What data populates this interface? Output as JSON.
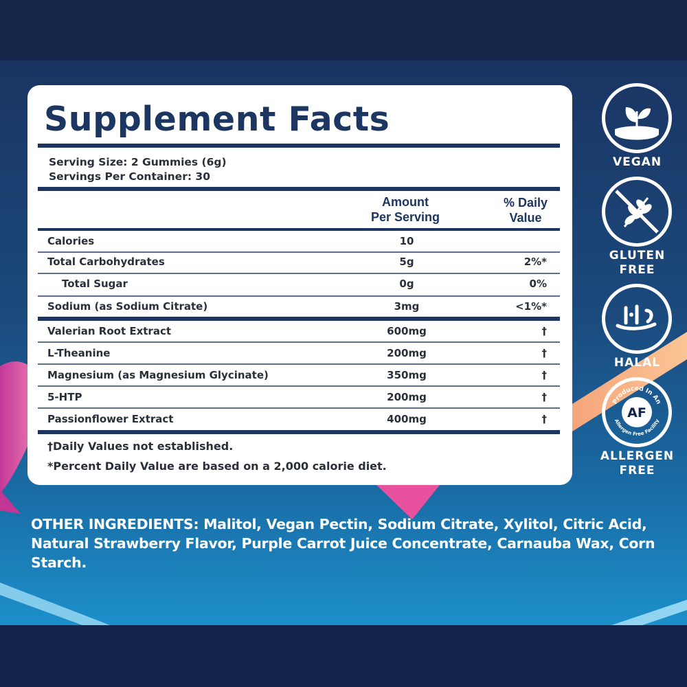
{
  "panel": {
    "title": "Supplement Facts",
    "serving_size": "Serving Size: 2 Gummies (6g)",
    "servings_per_container": "Servings Per Container: 30",
    "columns": {
      "amount_line1": "Amount",
      "amount_line2": "Per Serving",
      "dv_line1": "% Daily",
      "dv_line2": "Value"
    },
    "rows": [
      {
        "label": "Calories",
        "amount": "10",
        "dv": ""
      },
      {
        "label": "Total Carbohydrates",
        "amount": "5g",
        "dv": "2%*"
      },
      {
        "label": "Total Sugar",
        "amount": "0g",
        "dv": "0%"
      },
      {
        "label": "Sodium (as Sodium Citrate)",
        "amount": "3mg",
        "dv": "<1%*"
      },
      {
        "label": "Valerian Root Extract",
        "amount": "600mg",
        "dv": "†"
      },
      {
        "label": "L-Theanine",
        "amount": "200mg",
        "dv": "†"
      },
      {
        "label": "Magnesium (as Magnesium Glycinate)",
        "amount": "350mg",
        "dv": "†"
      },
      {
        "label": "5-HTP",
        "amount": "200mg",
        "dv": "†"
      },
      {
        "label": "Passionflower Extract",
        "amount": "400mg",
        "dv": "†"
      }
    ],
    "footnote_dagger": "†Daily Values not established.",
    "footnote_percent": "*Percent Daily Value are based on a 2,000 calorie diet."
  },
  "badges": [
    {
      "label": "VEGAN",
      "icon": "vegan-leaf-icon"
    },
    {
      "label_line1": "GLUTEN",
      "label_line2": "FREE",
      "icon": "gluten-free-wheat-icon"
    },
    {
      "label": "HALAL",
      "icon": "halal-icon"
    },
    {
      "label_line1": "ALLERGEN",
      "label_line2": "FREE",
      "icon": "allergen-free-icon",
      "seal_text_top": "Produced In An",
      "seal_text_bottom": "Allergen Free Facility",
      "seal_center": "AF"
    }
  ],
  "other_ingredients": "OTHER INGREDIENTS: Malitol, Vegan Pectin, Sodium Citrate, Xylitol, Citric Acid, Natural Strawberry Flavor, Purple Carrot Juice Concentrate, Carnauba Wax, Corn Starch.",
  "colors": {
    "navy": "#1c3561",
    "background": "#13244a",
    "text": "#2a2f3a",
    "white": "#ffffff"
  }
}
